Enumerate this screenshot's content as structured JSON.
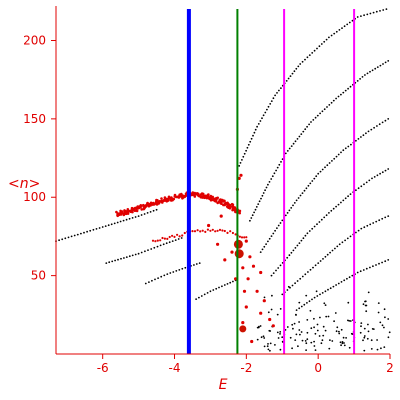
{
  "chart_data": {
    "type": "scatter",
    "title": "",
    "xlabel": "E",
    "ylabel": "<n>",
    "xlim": [
      -7.3,
      2.0
    ],
    "ylim": [
      0,
      222
    ],
    "x_ticks": [
      -6,
      -4,
      -2,
      0,
      2
    ],
    "x_tick_labels": [
      "-6",
      "-4",
      "-2",
      "0",
      "2"
    ],
    "y_ticks": [
      50,
      100,
      150,
      200
    ],
    "y_tick_labels": [
      "50",
      "100",
      "150",
      "200"
    ],
    "grid": false,
    "legend": "none",
    "colors": {
      "axis": "#e00000",
      "black_points": "#000000",
      "red_points": "#e00000",
      "blue_line": "#0000ff",
      "green_line": "#008000",
      "magenta_line": "#ff00ff"
    },
    "vertical_lines": [
      {
        "x": -3.6,
        "color": "#0000ff",
        "width": 4
      },
      {
        "x": -2.25,
        "color": "#008000",
        "width": 2
      },
      {
        "x": -0.95,
        "color": "#ff00ff",
        "width": 2
      },
      {
        "x": 1.0,
        "color": "#ff00ff",
        "width": 2
      }
    ],
    "black_bands": [
      {
        "points": [
          [
            -7.3,
            72
          ],
          [
            -6.0,
            81
          ],
          [
            -5.0,
            88
          ],
          [
            -4.5,
            92
          ]
        ]
      },
      {
        "points": [
          [
            -5.9,
            58
          ],
          [
            -5.0,
            64
          ],
          [
            -4.3,
            70
          ],
          [
            -3.8,
            74
          ]
        ]
      },
      {
        "points": [
          [
            -4.8,
            45
          ],
          [
            -4.2,
            51
          ],
          [
            -3.7,
            55
          ],
          [
            -3.3,
            58
          ]
        ]
      },
      {
        "points": [
          [
            -3.4,
            35
          ],
          [
            -3.0,
            40
          ],
          [
            -2.6,
            44
          ],
          [
            -2.3,
            47
          ]
        ]
      },
      {
        "points": [
          [
            -2.2,
            120
          ],
          [
            -1.7,
            145
          ],
          [
            -1.2,
            165
          ],
          [
            -0.5,
            185
          ],
          [
            0.3,
            202
          ],
          [
            1.1,
            215
          ],
          [
            1.9,
            220
          ]
        ]
      },
      {
        "points": [
          [
            -1.9,
            85
          ],
          [
            -1.4,
            108
          ],
          [
            -0.9,
            128
          ],
          [
            -0.2,
            148
          ],
          [
            0.5,
            163
          ],
          [
            1.3,
            178
          ],
          [
            1.95,
            187
          ]
        ]
      },
      {
        "points": [
          [
            -1.6,
            65
          ],
          [
            -1.1,
            82
          ],
          [
            -0.6,
            98
          ],
          [
            0.0,
            115
          ],
          [
            0.7,
            130
          ],
          [
            1.4,
            142
          ],
          [
            1.95,
            150
          ]
        ]
      },
      {
        "points": [
          [
            -1.3,
            50
          ],
          [
            -0.8,
            63
          ],
          [
            -0.3,
            77
          ],
          [
            0.3,
            90
          ],
          [
            0.9,
            102
          ],
          [
            1.5,
            112
          ],
          [
            1.95,
            118
          ]
        ]
      },
      {
        "points": [
          [
            -1.0,
            38
          ],
          [
            -0.5,
            48
          ],
          [
            0.0,
            58
          ],
          [
            0.6,
            70
          ],
          [
            1.2,
            80
          ],
          [
            1.95,
            88
          ]
        ]
      },
      {
        "points": [
          [
            -0.6,
            28
          ],
          [
            -0.1,
            36
          ],
          [
            0.5,
            44
          ],
          [
            1.1,
            52
          ],
          [
            1.95,
            60
          ]
        ]
      }
    ],
    "black_scatter_region": {
      "x": [
        -1.7,
        2.0
      ],
      "y": [
        2,
        45
      ],
      "count": 150
    },
    "red_band_top": [
      [
        -5.6,
        89
      ],
      [
        -5.0,
        93
      ],
      [
        -4.5,
        97
      ],
      [
        -4.0,
        100
      ],
      [
        -3.5,
        102
      ],
      [
        -3.0,
        100
      ],
      [
        -2.7,
        97
      ],
      [
        -2.4,
        94
      ],
      [
        -2.2,
        90
      ]
    ],
    "red_band_mid": [
      [
        -4.6,
        72
      ],
      [
        -4.0,
        75
      ],
      [
        -3.5,
        78
      ],
      [
        -3.0,
        79
      ],
      [
        -2.6,
        78
      ],
      [
        -2.3,
        77
      ],
      [
        -2.0,
        74
      ]
    ],
    "red_scatter": [
      [
        -2.4,
        65
      ],
      [
        -2.2,
        70
      ],
      [
        -2.0,
        72
      ],
      [
        -1.9,
        62
      ],
      [
        -1.8,
        56
      ],
      [
        -1.6,
        52
      ],
      [
        -2.1,
        55
      ],
      [
        -2.3,
        48
      ],
      [
        -1.95,
        48
      ],
      [
        -2.05,
        40
      ],
      [
        -1.7,
        40
      ],
      [
        -1.5,
        34
      ],
      [
        -1.25,
        18
      ],
      [
        -1.35,
        22
      ],
      [
        -2.0,
        30
      ],
      [
        -1.85,
        8
      ],
      [
        -2.15,
        114
      ],
      [
        -2.25,
        105
      ],
      [
        -2.2,
        112
      ],
      [
        -2.7,
        88
      ],
      [
        -3.05,
        82
      ],
      [
        -2.6,
        60
      ],
      [
        -2.8,
        70
      ],
      [
        -1.6,
        26
      ],
      [
        -2.1,
        20
      ]
    ],
    "red_markers": [
      {
        "x": -2.22,
        "y": 70,
        "size": "large"
      },
      {
        "x": -2.2,
        "y": 64,
        "size": "large"
      },
      {
        "x": -2.1,
        "y": 16,
        "size": "medium"
      }
    ]
  }
}
